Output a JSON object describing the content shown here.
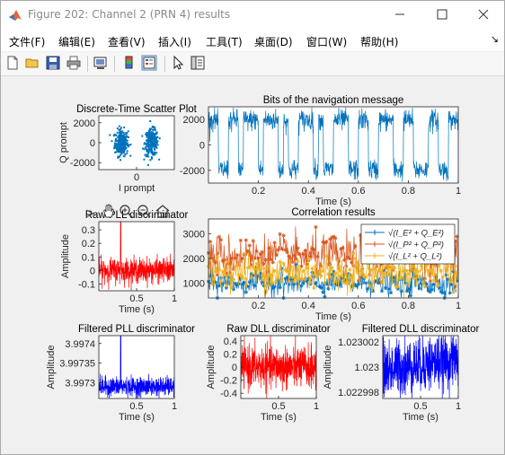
{
  "window": {
    "title": "Figure 202: Channel 2 (PRN 4) results",
    "buttons": [
      "minimize",
      "maximize",
      "close"
    ]
  },
  "menubar": {
    "items": [
      "文件(F)",
      "编辑(E)",
      "查看(V)",
      "插入(I)",
      "工具(T)",
      "桌面(D)",
      "窗口(W)",
      "帮助(H)"
    ],
    "overflow_glyph": "↘"
  },
  "toolbar": {
    "icons": [
      "new-figure-icon",
      "open-file-icon",
      "save-icon",
      "print-icon",
      "link-plot-icon",
      "insert-colorbar-icon",
      "insert-legend-icon",
      "pointer-icon",
      "property-editor-icon"
    ]
  },
  "axes_toolbar": {
    "icons": [
      "brush-icon",
      "pan-icon",
      "zoom-in-icon",
      "zoom-out-icon",
      "home-icon"
    ]
  },
  "colors": {
    "blue": "#0072bd",
    "orange": "#d95319",
    "yellow": "#edb120",
    "red": "#ff0000",
    "pure_blue": "#0000ff"
  },
  "chart_data": [
    {
      "id": "scatter",
      "type": "scatter",
      "title": "Discrete-Time Scatter Plot",
      "xlabel": "I prompt",
      "ylabel": "Q prompt",
      "x_ticks": [
        "0"
      ],
      "y_ticks": [
        "2000",
        "0",
        "-2000"
      ],
      "ylim": [
        -2700,
        2700
      ],
      "clusters": [
        {
          "i_center": -3000,
          "q_center": 0,
          "spread_i": 1200,
          "spread_q": 1100
        },
        {
          "i_center": 3000,
          "q_center": 0,
          "spread_i": 1200,
          "spread_q": 1100
        }
      ]
    },
    {
      "id": "nav_bits",
      "type": "line",
      "title": "Bits of the navigation message",
      "xlabel": "Time (s)",
      "x_ticks": [
        "0.2",
        "0.4",
        "0.6",
        "0.8",
        "1"
      ],
      "y_ticks": [
        "2000",
        "0",
        "-2000"
      ],
      "xlim": [
        0,
        1
      ],
      "ylim": [
        -3000,
        3000
      ],
      "amplitude": 1950,
      "noise": 420,
      "bits": [
        1,
        1,
        -1,
        -1,
        1,
        1,
        -1,
        1,
        1,
        1,
        -1,
        1,
        1,
        1,
        -1,
        1,
        -1,
        -1,
        1,
        1,
        1,
        -1,
        1,
        -1,
        -1,
        1,
        1,
        1,
        -1,
        -1,
        1,
        1,
        -1,
        -1,
        1,
        1,
        1,
        -1,
        -1,
        1,
        1,
        -1,
        -1,
        -1,
        1,
        1,
        -1,
        -1,
        1,
        1
      ]
    },
    {
      "id": "raw_pll",
      "type": "line",
      "title": "Raw PLL discriminator",
      "xlabel": "Time (s)",
      "ylabel": "Amplitude",
      "x_ticks": [
        "0.5",
        "1"
      ],
      "y_ticks": [
        "0.3",
        "0.2",
        "0.1",
        "0",
        "-0.1"
      ],
      "xlim": [
        0,
        1
      ],
      "ylim": [
        -0.15,
        0.36
      ],
      "base": 0.0,
      "noise": 0.045,
      "spike_at": 0.29,
      "spike_value": 0.36
    },
    {
      "id": "correlation",
      "type": "line",
      "title": "Correlation results",
      "xlabel": "Time (s)",
      "x_ticks": [
        "0.2",
        "0.4",
        "0.6",
        "0.8",
        "1"
      ],
      "y_ticks": [
        "3000",
        "2000",
        "1000"
      ],
      "xlim": [
        0,
        1
      ],
      "ylim": [
        400,
        3600
      ],
      "legend": [
        "√(I_E² + Q_E²)",
        "√(I_P² + Q_P²)",
        "√(I_L² + Q_L²)"
      ],
      "legend_position": "top-right",
      "series": [
        {
          "name": "√(I_E² + Q_E²)",
          "color": "#0072bd",
          "mean": 1000,
          "noise": 260
        },
        {
          "name": "√(I_P² + Q_P²)",
          "color": "#d95319",
          "mean": 2100,
          "noise": 420
        },
        {
          "name": "√(I_L² + Q_L²)",
          "color": "#edb120",
          "mean": 1450,
          "noise": 380
        }
      ]
    },
    {
      "id": "filtered_pll",
      "type": "line",
      "title": "Filtered PLL discriminator",
      "xlabel": "Time (s)",
      "ylabel": "Amplitude",
      "x_ticks": [
        "0.5",
        "1"
      ],
      "y_ticks": [
        "3.9974",
        "3.99735",
        "3.9973"
      ],
      "xlim": [
        0,
        1
      ],
      "ylim": [
        3.99726,
        3.99742
      ],
      "base": 3.99729,
      "noise": 1.2e-05,
      "spike_at": 0.29,
      "spike_value": 3.99742
    },
    {
      "id": "raw_dll",
      "type": "line",
      "title": "Raw DLL discriminator",
      "xlabel": "Time (s)",
      "ylabel": "Amplitude",
      "x_ticks": [
        "0.5",
        "1"
      ],
      "y_ticks": [
        "0.4",
        "0.2",
        "0",
        "-0.2",
        "-0.4"
      ],
      "xlim": [
        0,
        1
      ],
      "ylim": [
        -0.48,
        0.48
      ],
      "base": 0.0,
      "noise": 0.2
    },
    {
      "id": "filtered_dll",
      "type": "line",
      "title": "Filtered DLL discriminator",
      "xlabel": "Time (s)",
      "ylabel": "Amplitude",
      "x_ticks": [
        "0.5",
        "1"
      ],
      "y_ticks": [
        "1.023002",
        "1.023",
        "1.022998"
      ],
      "xlim": [
        0,
        1
      ],
      "ylim": [
        1.0229975,
        1.0230025
      ],
      "base": 1.0230002,
      "noise": 1.1e-06
    }
  ]
}
